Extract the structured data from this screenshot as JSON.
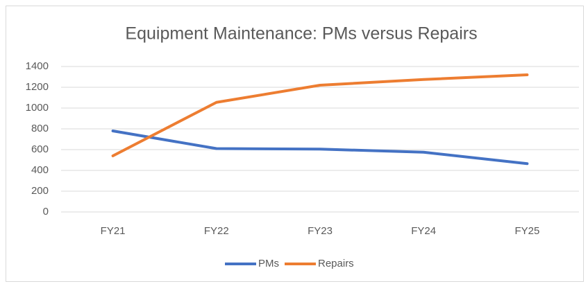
{
  "chart_data": {
    "type": "line",
    "title": "Equipment Maintenance: PMs versus Repairs",
    "categories": [
      "FY21",
      "FY22",
      "FY23",
      "FY24",
      "FY25"
    ],
    "series": [
      {
        "name": "PMs",
        "color": "#4472c4",
        "values": [
          780,
          610,
          605,
          575,
          465
        ]
      },
      {
        "name": "Repairs",
        "color": "#ed7d31",
        "values": [
          540,
          1055,
          1220,
          1275,
          1320
        ]
      }
    ],
    "ylim": [
      0,
      1400
    ],
    "yticks": [
      0,
      200,
      400,
      600,
      800,
      1000,
      1200,
      1400
    ],
    "grid": true,
    "legend": "bottom"
  }
}
